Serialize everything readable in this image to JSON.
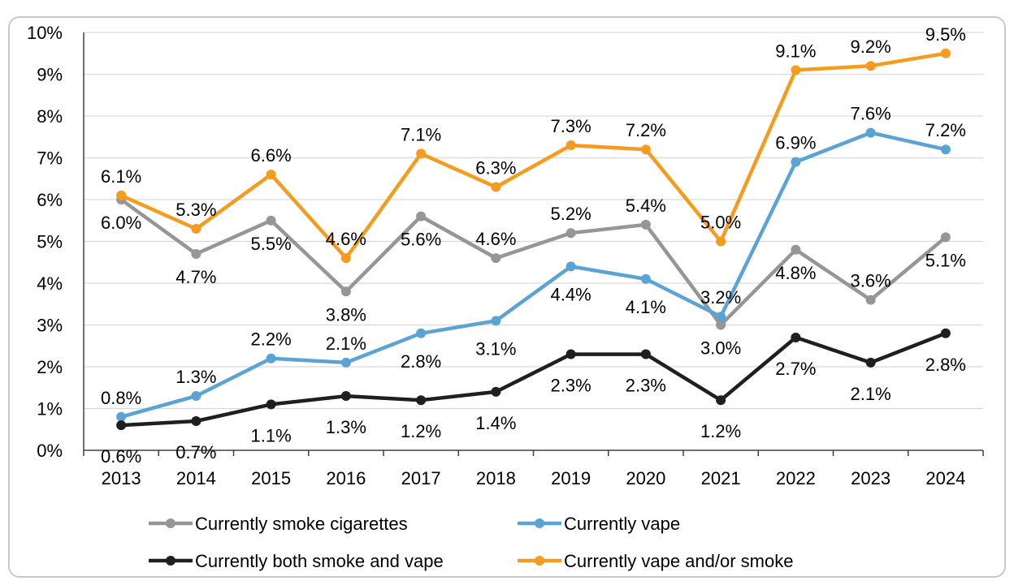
{
  "figure": {
    "title": ""
  },
  "chart_data": {
    "type": "line",
    "title": "",
    "xlabel": "",
    "ylabel": "",
    "categories": [
      "2013",
      "2014",
      "2015",
      "2016",
      "2017",
      "2018",
      "2019",
      "2020",
      "2021",
      "2022",
      "2023",
      "2024"
    ],
    "ylim": [
      0,
      10
    ],
    "y_ticks": [
      "0%",
      "1%",
      "2%",
      "3%",
      "4%",
      "5%",
      "6%",
      "7%",
      "8%",
      "9%",
      "10%"
    ],
    "grid": true,
    "legend_position": "bottom",
    "series": [
      {
        "name": "Currently smoke cigarettes",
        "color": "#969696",
        "values": [
          6.0,
          4.7,
          5.5,
          3.8,
          5.6,
          4.6,
          5.2,
          5.4,
          3.0,
          4.8,
          3.6,
          5.1
        ],
        "labels": [
          "6.0%",
          "4.7%",
          "5.5%",
          "3.8%",
          "5.6%",
          "4.6%",
          "5.2%",
          "5.4%",
          "3.0%",
          "4.8%",
          "3.6%",
          "5.1%"
        ]
      },
      {
        "name": "Currently vape",
        "color": "#5ba3d5",
        "values": [
          0.8,
          1.3,
          2.2,
          2.1,
          2.8,
          3.1,
          4.4,
          4.1,
          3.2,
          6.9,
          7.6,
          7.2
        ],
        "labels": [
          "0.8%",
          "1.3%",
          "2.2%",
          "2.1%",
          "2.8%",
          "3.1%",
          "4.4%",
          "4.1%",
          "3.2%",
          "6.9%",
          "7.6%",
          "7.2%"
        ]
      },
      {
        "name": "Currently both smoke and vape",
        "color": "#1f1f1f",
        "values": [
          0.6,
          0.7,
          1.1,
          1.3,
          1.2,
          1.4,
          2.3,
          2.3,
          1.2,
          2.7,
          2.1,
          2.8
        ],
        "labels": [
          "0.6%",
          "0.7%",
          "1.1%",
          "1.3%",
          "1.2%",
          "1.4%",
          "2.3%",
          "2.3%",
          "1.2%",
          "2.7%",
          "2.1%",
          "2.8%"
        ]
      },
      {
        "name": "Currently vape and/or smoke",
        "color": "#f59c1f",
        "values": [
          6.1,
          5.3,
          6.6,
          4.6,
          7.1,
          6.3,
          7.3,
          7.2,
          5.0,
          9.1,
          9.2,
          9.5
        ],
        "labels": [
          "6.1%",
          "5.3%",
          "6.6%",
          "4.6%",
          "7.1%",
          "6.3%",
          "7.3%",
          "7.2%",
          "5.0%",
          "9.1%",
          "9.2%",
          "9.5%"
        ]
      }
    ]
  }
}
